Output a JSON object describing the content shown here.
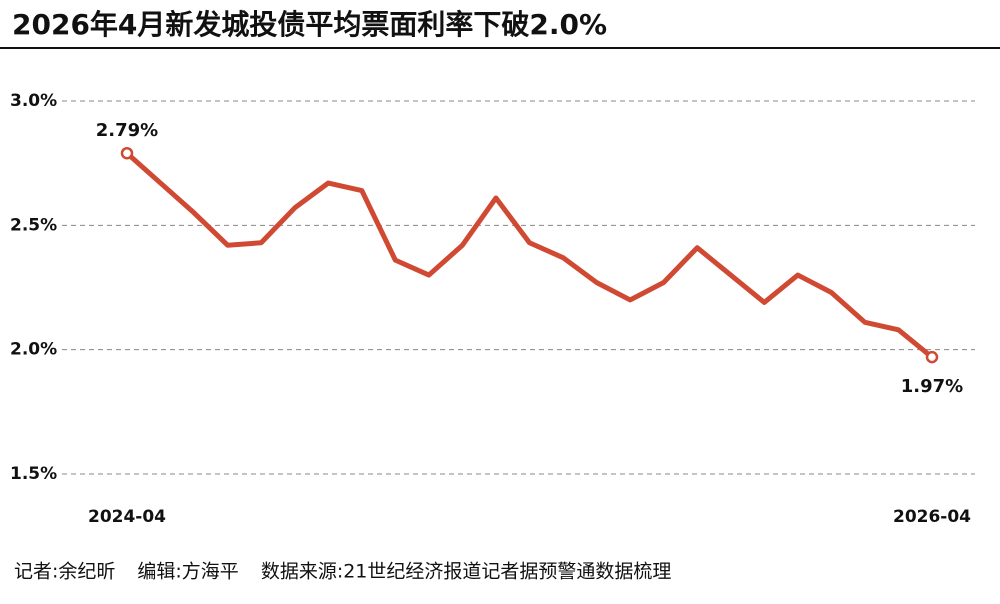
{
  "chart_data": {
    "type": "line",
    "title": "2026年4月新发城投债平均票面利率下破2.0%",
    "categories": [
      "2024-04",
      null,
      null,
      null,
      null,
      null,
      null,
      null,
      null,
      null,
      null,
      null,
      null,
      null,
      null,
      null,
      null,
      null,
      null,
      null,
      null,
      null,
      null,
      null,
      "2026-04"
    ],
    "series": [
      {
        "name": "新发城投债平均票面利率",
        "color": "#d04a33",
        "values": [
          2.79,
          2.67,
          2.55,
          2.42,
          2.43,
          2.57,
          2.67,
          2.64,
          2.36,
          2.3,
          2.42,
          2.61,
          2.43,
          2.37,
          2.27,
          2.2,
          2.27,
          2.41,
          2.3,
          2.19,
          2.3,
          2.23,
          2.11,
          2.08,
          1.97
        ],
        "value_labels": [
          "2.79%",
          null,
          null,
          null,
          null,
          null,
          null,
          null,
          null,
          null,
          null,
          null,
          null,
          null,
          null,
          null,
          null,
          null,
          null,
          null,
          null,
          null,
          null,
          null,
          "1.97%"
        ]
      }
    ],
    "ylim": [
      1.5,
      3.0
    ],
    "yticks": [
      {
        "value": 1.5,
        "label": "1.5%"
      },
      {
        "value": 2.0,
        "label": "2.0%"
      },
      {
        "value": 2.5,
        "label": "2.5%"
      },
      {
        "value": 3.0,
        "label": "3.0%"
      }
    ],
    "grid": true,
    "annotations": [
      "记者:余纪昕",
      "编辑:方海平",
      "数据来源:21世纪经济报道记者据预警通数据梳理"
    ]
  }
}
